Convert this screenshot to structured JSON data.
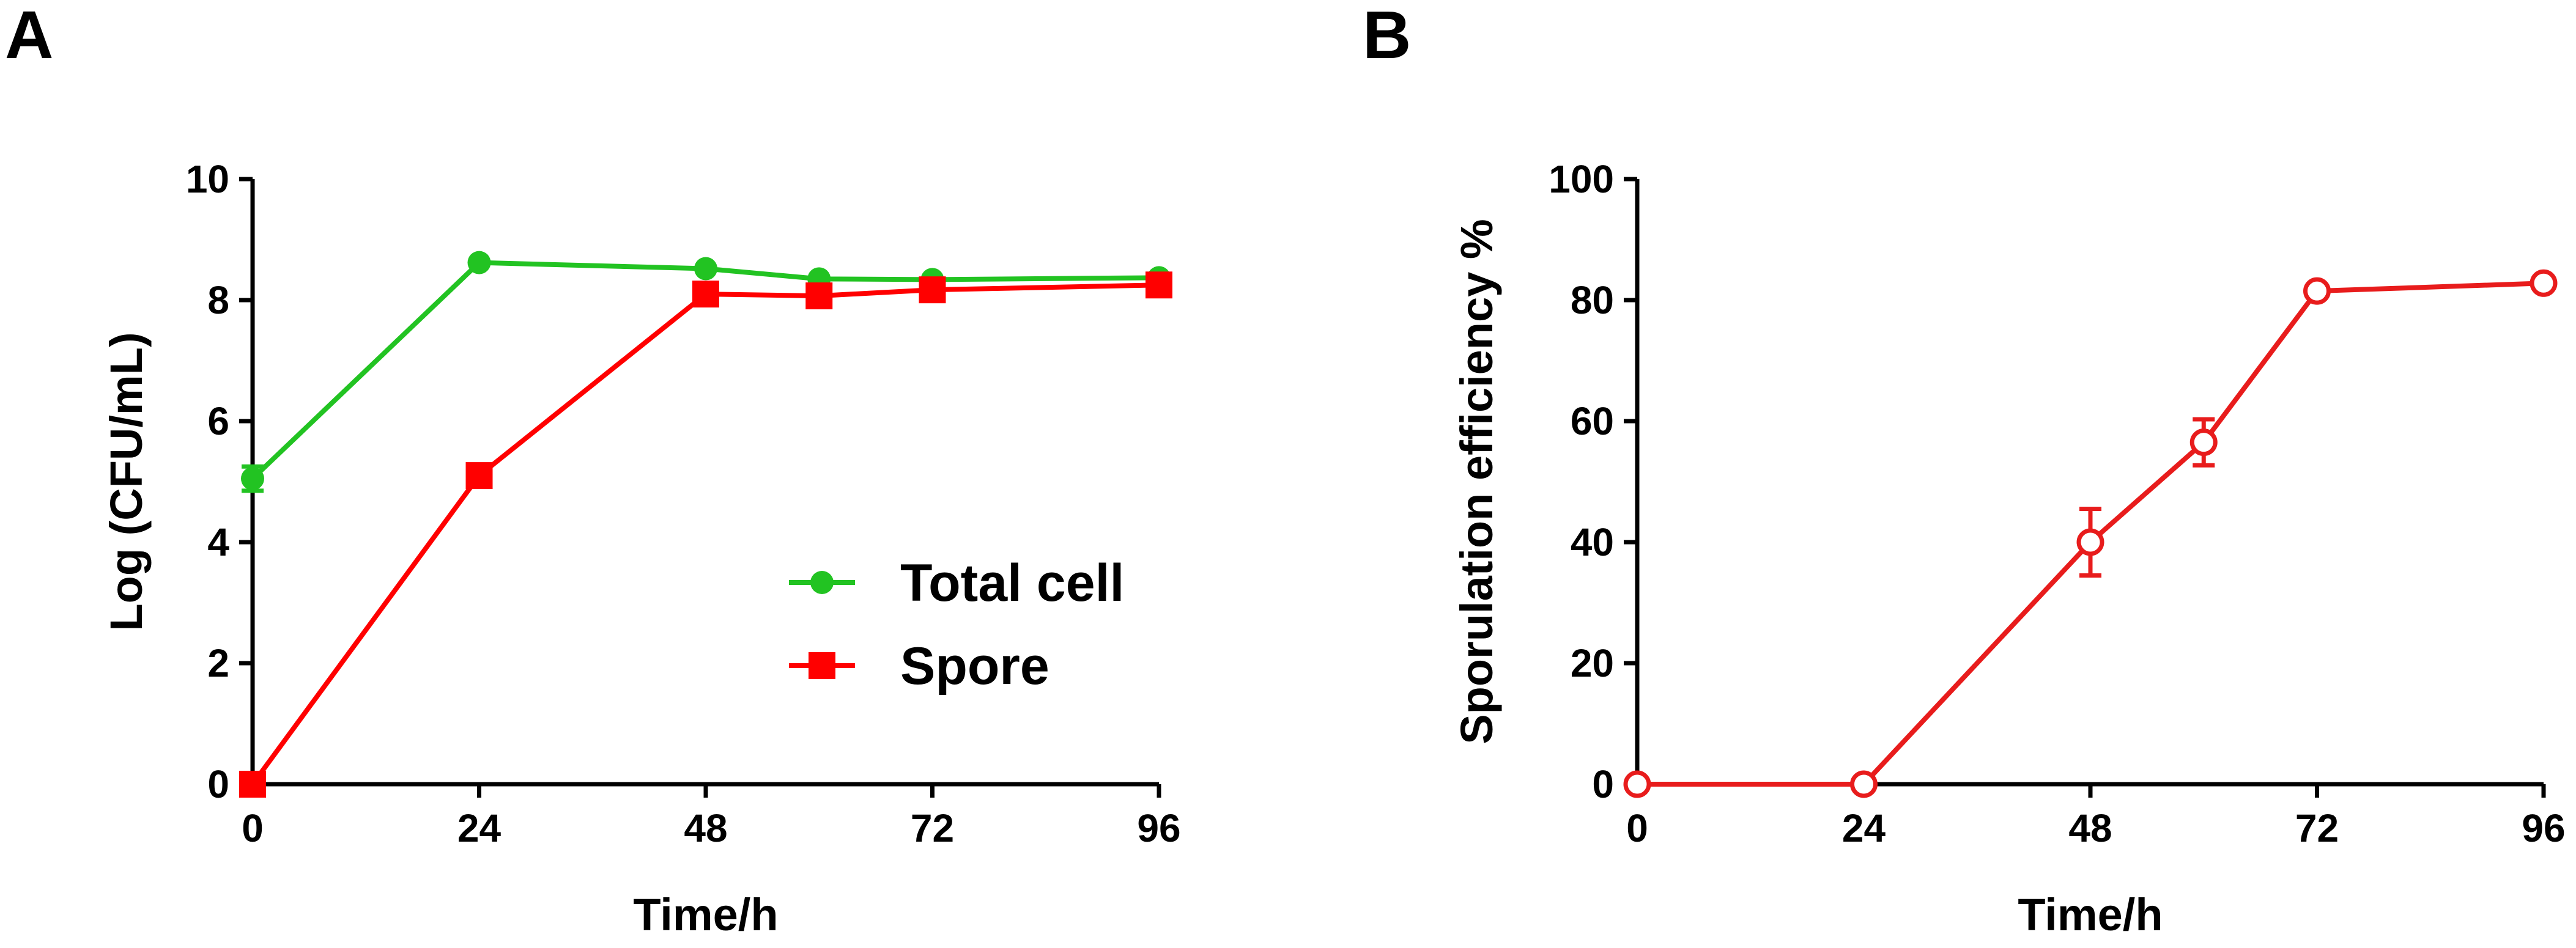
{
  "colors": {
    "total_cell": "#22c322",
    "spore": "#ff0000",
    "sporulation": "#e81c1c",
    "axis": "#000000"
  },
  "chart_data": [
    {
      "panel": "A",
      "type": "line",
      "xlabel": "Time/h",
      "ylabel": "Log (CFU/mL)",
      "xlim": [
        0,
        96
      ],
      "ylim": [
        0,
        10
      ],
      "xticks": [
        0,
        24,
        48,
        72,
        96
      ],
      "yticks": [
        0,
        2,
        4,
        6,
        8,
        10
      ],
      "grid": false,
      "legend_position": "lower-right",
      "series": [
        {
          "name": "Total cell",
          "color": "#22c322",
          "marker": "circle",
          "x": [
            0,
            24,
            48,
            60,
            72,
            96
          ],
          "y": [
            5.05,
            8.62,
            8.52,
            8.35,
            8.34,
            8.37
          ],
          "err": [
            0.2,
            0.0,
            0.0,
            0.0,
            0.0,
            0.0
          ]
        },
        {
          "name": "Spore",
          "color": "#ff0000",
          "marker": "square",
          "x": [
            0,
            24,
            48,
            60,
            72,
            96
          ],
          "y": [
            0.0,
            5.1,
            8.1,
            8.07,
            8.17,
            8.25
          ],
          "err": [
            0.0,
            0.15,
            0.0,
            0.0,
            0.0,
            0.0
          ]
        }
      ]
    },
    {
      "panel": "B",
      "type": "line",
      "xlabel": "Time/h",
      "ylabel": "Sporulation efficiency %",
      "xlim": [
        0,
        96
      ],
      "ylim": [
        0,
        100
      ],
      "xticks": [
        0,
        24,
        48,
        72,
        96
      ],
      "yticks": [
        0,
        20,
        40,
        60,
        80,
        100
      ],
      "grid": false,
      "series": [
        {
          "name": "Sporulation efficiency",
          "color": "#e81c1c",
          "marker": "open-circle",
          "x": [
            0,
            24,
            48,
            60,
            72,
            96
          ],
          "y": [
            0,
            0,
            40,
            56.5,
            81.5,
            82.8
          ],
          "err": [
            0,
            0,
            5.5,
            3.8,
            0,
            0
          ]
        }
      ]
    }
  ]
}
